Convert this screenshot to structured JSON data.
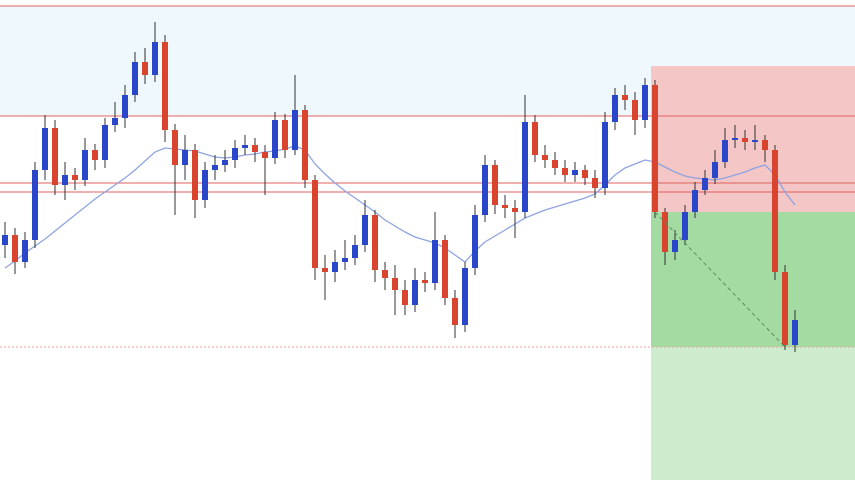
{
  "chart_data": {
    "type": "candlestick",
    "ylim": [
      0,
      480
    ],
    "up_color": "#2947c8",
    "down_color": "#d9442f",
    "open": [
      235,
      245,
      218,
      240,
      310,
      352,
      295,
      305,
      300,
      330,
      320,
      355,
      362,
      385,
      418,
      405,
      438,
      350,
      315,
      330,
      280,
      310,
      315,
      320,
      332,
      335,
      328,
      322,
      360,
      330,
      370,
      300,
      212,
      208,
      218,
      222,
      235,
      265,
      210,
      202,
      190,
      175,
      200,
      197,
      240,
      182,
      155,
      212,
      265,
      315,
      275,
      272,
      268,
      358,
      325,
      320,
      312,
      305,
      310,
      302,
      292,
      358,
      385,
      380,
      360,
      395,
      268,
      228,
      240,
      268,
      290,
      302,
      318,
      340,
      342,
      338,
      340,
      330,
      208,
      135
    ],
    "high": [
      258,
      252,
      248,
      318,
      365,
      360,
      318,
      312,
      342,
      336,
      362,
      378,
      395,
      428,
      432,
      458,
      445,
      356,
      345,
      336,
      318,
      325,
      330,
      340,
      345,
      342,
      335,
      368,
      366,
      405,
      375,
      305,
      225,
      230,
      240,
      245,
      280,
      270,
      218,
      215,
      200,
      212,
      208,
      268,
      245,
      190,
      218,
      275,
      325,
      320,
      285,
      280,
      385,
      365,
      335,
      328,
      320,
      318,
      315,
      310,
      368,
      392,
      395,
      388,
      402,
      400,
      272,
      250,
      275,
      298,
      310,
      330,
      352,
      355,
      350,
      355,
      345,
      335,
      215,
      170
    ],
    "low": [
      222,
      206,
      212,
      232,
      300,
      285,
      280,
      290,
      294,
      310,
      312,
      348,
      352,
      378,
      396,
      398,
      338,
      265,
      300,
      262,
      272,
      300,
      308,
      312,
      325,
      318,
      285,
      316,
      322,
      325,
      292,
      200,
      180,
      198,
      210,
      215,
      228,
      198,
      190,
      165,
      165,
      168,
      188,
      190,
      175,
      142,
      148,
      205,
      258,
      266,
      262,
      242,
      262,
      318,
      312,
      305,
      298,
      298,
      295,
      282,
      285,
      350,
      370,
      345,
      352,
      262,
      215,
      220,
      235,
      262,
      285,
      296,
      312,
      332,
      330,
      330,
      318,
      200,
      130,
      128
    ],
    "close": [
      245,
      218,
      240,
      310,
      352,
      295,
      305,
      300,
      330,
      320,
      355,
      362,
      385,
      418,
      405,
      438,
      350,
      315,
      330,
      280,
      310,
      315,
      320,
      332,
      335,
      328,
      322,
      360,
      330,
      370,
      300,
      212,
      208,
      218,
      222,
      235,
      265,
      210,
      202,
      190,
      175,
      200,
      197,
      240,
      182,
      155,
      212,
      265,
      315,
      275,
      272,
      268,
      358,
      325,
      320,
      312,
      305,
      310,
      302,
      292,
      358,
      385,
      380,
      360,
      395,
      268,
      228,
      240,
      268,
      290,
      302,
      318,
      340,
      342,
      338,
      340,
      330,
      208,
      135,
      160
    ],
    "moving_average": {
      "color": "#8fa3e0",
      "values": [
        212,
        219,
        227,
        234,
        241,
        249,
        257,
        265,
        273,
        281,
        288,
        295,
        302,
        310,
        319,
        328,
        332,
        331,
        330,
        329,
        326,
        323,
        322,
        323,
        325,
        326,
        328,
        329,
        331,
        334,
        330,
        316,
        306,
        297,
        289,
        282,
        275,
        268,
        260,
        254,
        248,
        243,
        240,
        237,
        232,
        225,
        218,
        229,
        238,
        244,
        250,
        256,
        262,
        266,
        270,
        273,
        276,
        279,
        282,
        286,
        295,
        305,
        312,
        316,
        320,
        318,
        313,
        308,
        304,
        302,
        301,
        300,
        302,
        305,
        308,
        312,
        315,
        305,
        288,
        275
      ]
    },
    "levels": {
      "color": "#e06060",
      "values": [
        474,
        364,
        297,
        288
      ]
    },
    "dotted_level": {
      "color": "#f0a0a0",
      "value": 133
    },
    "zone": {
      "color": "#eef8fd",
      "top": 474,
      "bottom": 364
    },
    "trade": {
      "start_index": 65,
      "line_end_index": 78,
      "entry": 268,
      "stop": 414,
      "target": 133,
      "stop_color": "#f4c6c6",
      "target_color": "#a3dba3",
      "extension_color": "#cdebcd",
      "line_color": "#5c8f5c"
    }
  }
}
